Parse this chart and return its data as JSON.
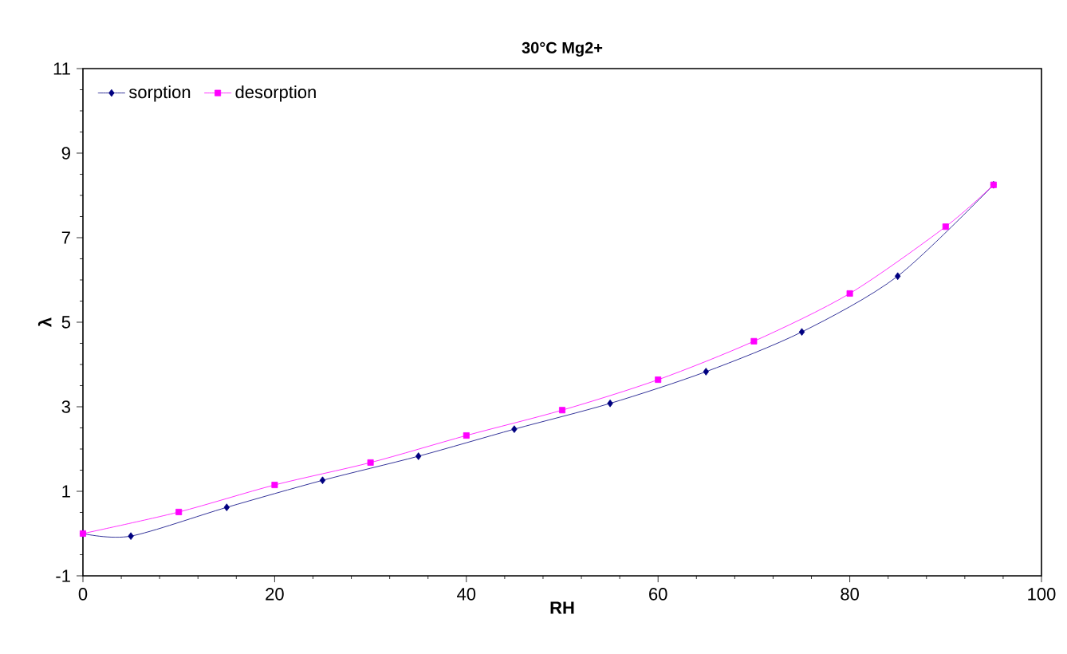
{
  "chart_data": {
    "type": "line",
    "title": "30°C Mg2+",
    "xlabel": "RH",
    "ylabel": "λ",
    "xlim": [
      0,
      100
    ],
    "xticks": [
      0,
      20,
      40,
      60,
      80,
      100
    ],
    "ylim": [
      -1,
      11
    ],
    "yticks": [
      -1,
      1,
      3,
      5,
      7,
      9,
      11
    ],
    "legend": "top left",
    "grid": false,
    "series": [
      {
        "name": "sorption",
        "color": "#000080",
        "marker": "diamond",
        "x": [
          0,
          5,
          15,
          25,
          35,
          45,
          55,
          65,
          75,
          85,
          95
        ],
        "values": [
          0,
          -0.06,
          0.62,
          1.26,
          1.83,
          2.47,
          3.08,
          3.83,
          4.77,
          6.09,
          8.25
        ]
      },
      {
        "name": "desorption",
        "color": "#ff00ff",
        "marker": "square",
        "x": [
          0,
          10,
          20,
          30,
          40,
          50,
          60,
          70,
          80,
          90,
          95
        ],
        "values": [
          0,
          0.51,
          1.15,
          1.68,
          2.32,
          2.92,
          3.64,
          4.55,
          5.68,
          7.26,
          8.25
        ]
      }
    ]
  }
}
